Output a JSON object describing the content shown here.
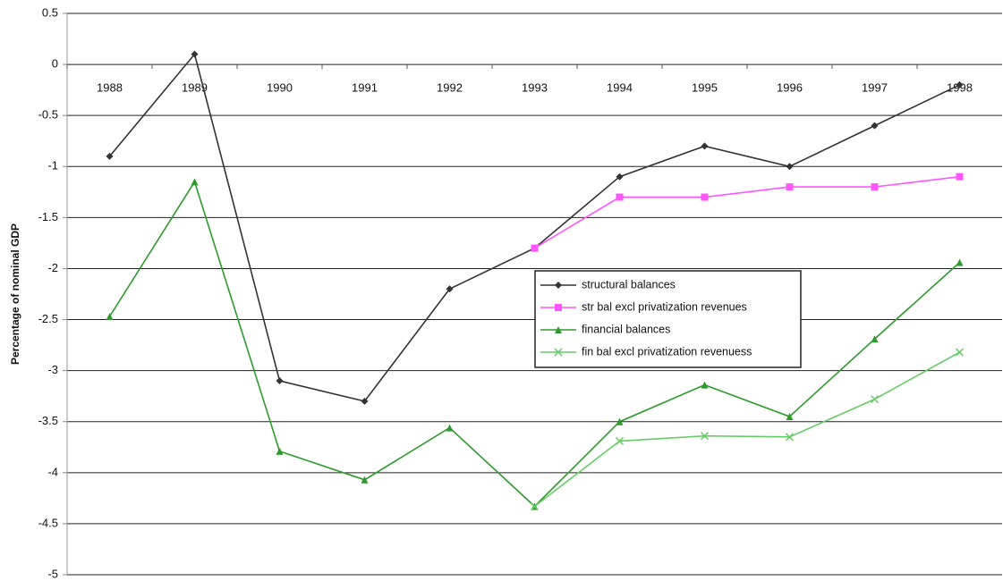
{
  "chart_data": {
    "type": "line",
    "y_label": "Percentage of nominal GDP",
    "categories": [
      "1988",
      "1989",
      "1990",
      "1991",
      "1992",
      "1993",
      "1994",
      "1995",
      "1996",
      "1997",
      "1998"
    ],
    "series": [
      {
        "name": "structural balances",
        "color": "#333333",
        "marker": "diamond",
        "values": [
          -0.9,
          0.1,
          -3.1,
          -3.3,
          -2.2,
          -1.8,
          -1.1,
          -0.8,
          -1.0,
          -0.6,
          -0.2
        ]
      },
      {
        "name": "str bal excl privatization revenues",
        "color": "#ff55ff",
        "marker": "square",
        "values": [
          null,
          null,
          null,
          null,
          null,
          -1.8,
          -1.3,
          -1.3,
          -1.2,
          -1.2,
          -1.1
        ]
      },
      {
        "name": "financial balances",
        "color": "#2e9a2e",
        "marker": "triangle",
        "values": [
          -2.47,
          -1.15,
          -3.79,
          -4.07,
          -3.56,
          -4.33,
          -3.5,
          -3.14,
          -3.45,
          -2.69,
          -1.94
        ]
      },
      {
        "name": "fin bal excl privatization revenuess",
        "color": "#66cc66",
        "marker": "cross",
        "values": [
          null,
          null,
          null,
          null,
          null,
          -4.33,
          -3.69,
          -3.64,
          -3.65,
          -3.28,
          -2.82
        ]
      }
    ],
    "ylim": [
      -5,
      0.5
    ],
    "yticks": [
      0.5,
      0,
      -0.5,
      -1,
      -1.5,
      -2,
      -2.5,
      -3,
      -3.5,
      -4,
      -4.5,
      -5
    ],
    "grid": true,
    "legend": "center"
  }
}
